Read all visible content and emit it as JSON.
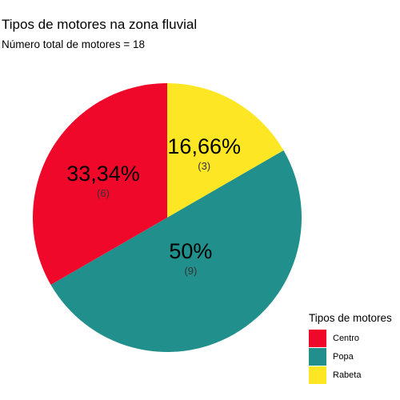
{
  "chart_data": {
    "type": "pie",
    "title": "Tipos de motores na zona fluvial",
    "subtitle": "Número total de motores = 18",
    "legend_title": "Tipos de motores",
    "legend_position": "bottom-right",
    "slices": [
      {
        "name": "Rabeta",
        "value": 3,
        "percent_label": "16,66%",
        "count_label": "(3)",
        "color": "#FDE725"
      },
      {
        "name": "Popa",
        "value": 9,
        "percent_label": "50%",
        "count_label": "(9)",
        "color": "#21908C"
      },
      {
        "name": "Centro",
        "value": 6,
        "percent_label": "33,34%",
        "count_label": "(6)",
        "color": "#F0082A"
      }
    ],
    "legend_order": [
      "Centro",
      "Popa",
      "Rabeta"
    ]
  }
}
